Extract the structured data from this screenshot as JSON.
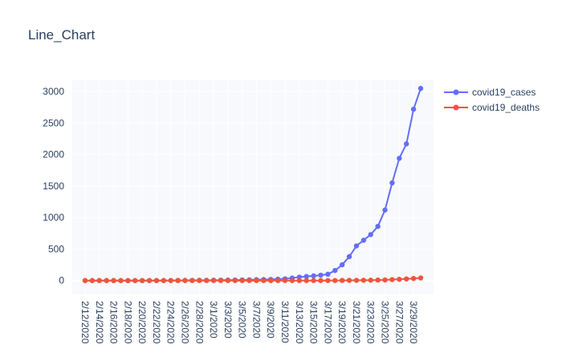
{
  "chart_data": {
    "type": "line",
    "title": "Line_Chart",
    "xlabel": "",
    "ylabel": "",
    "x": [
      "2/12/2020",
      "2/13/2020",
      "2/14/2020",
      "2/15/2020",
      "2/16/2020",
      "2/17/2020",
      "2/18/2020",
      "2/19/2020",
      "2/20/2020",
      "2/21/2020",
      "2/22/2020",
      "2/23/2020",
      "2/24/2020",
      "2/25/2020",
      "2/26/2020",
      "2/27/2020",
      "2/28/2020",
      "2/29/2020",
      "3/1/2020",
      "3/2/2020",
      "3/3/2020",
      "3/4/2020",
      "3/5/2020",
      "3/6/2020",
      "3/7/2020",
      "3/8/2020",
      "3/9/2020",
      "3/10/2020",
      "3/11/2020",
      "3/12/2020",
      "3/13/2020",
      "3/14/2020",
      "3/15/2020",
      "3/16/2020",
      "3/17/2020",
      "3/18/2020",
      "3/19/2020",
      "3/20/2020",
      "3/21/2020",
      "3/22/2020",
      "3/23/2020",
      "3/24/2020",
      "3/25/2020",
      "3/26/2020",
      "3/27/2020",
      "3/28/2020",
      "3/29/2020",
      "3/30/2020"
    ],
    "tick_labels": [
      "2/12/2020",
      "2/14/2020",
      "2/16/2020",
      "2/18/2020",
      "2/20/2020",
      "2/22/2020",
      "2/24/2020",
      "2/26/2020",
      "2/28/2020",
      "3/1/2020",
      "3/3/2020",
      "3/5/2020",
      "3/7/2020",
      "3/9/2020",
      "3/11/2020",
      "3/13/2020",
      "3/15/2020",
      "3/17/2020",
      "3/19/2020",
      "3/21/2020",
      "3/23/2020",
      "3/25/2020",
      "3/27/2020",
      "3/29/2020"
    ],
    "yticks": [
      0,
      500,
      1000,
      1500,
      2000,
      2500,
      3000
    ],
    "ylim": [
      -220,
      3180
    ],
    "grid": true,
    "legend_position": "top-right",
    "series": [
      {
        "name": "covid19_cases",
        "color": "#636efa",
        "values": [
          0,
          0,
          0,
          0,
          0,
          0,
          0,
          0,
          0,
          0,
          0,
          0,
          1,
          2,
          3,
          4,
          5,
          5,
          6,
          7,
          8,
          9,
          10,
          12,
          14,
          16,
          18,
          22,
          28,
          40,
          55,
          65,
          75,
          85,
          100,
          160,
          250,
          380,
          550,
          640,
          730,
          860,
          1120,
          1550,
          1940,
          2170,
          2720,
          3050
        ]
      },
      {
        "name": "covid19_deaths",
        "color": "#ef553b",
        "values": [
          0,
          0,
          0,
          0,
          0,
          0,
          0,
          0,
          0,
          0,
          0,
          0,
          0,
          0,
          0,
          0,
          0,
          0,
          0,
          0,
          0,
          0,
          0,
          0,
          0,
          0,
          0,
          0,
          0,
          0,
          0,
          0,
          0,
          0,
          1,
          1,
          2,
          3,
          4,
          5,
          6,
          8,
          10,
          15,
          20,
          26,
          33,
          41
        ]
      }
    ]
  }
}
